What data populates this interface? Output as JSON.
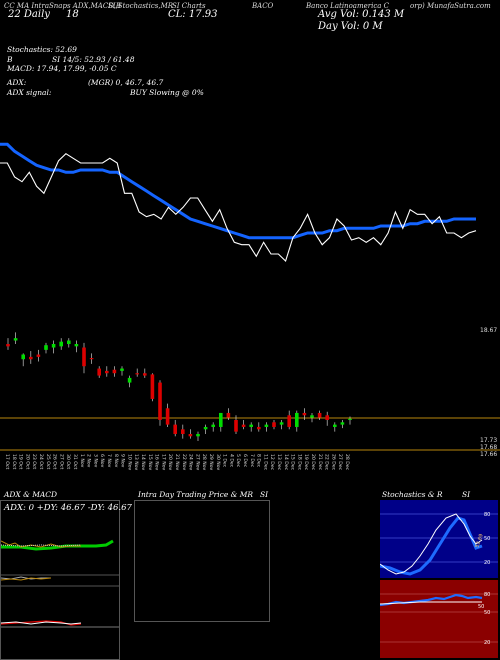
{
  "header": {
    "line1_a": "CC MA IntraSnaps ADX,MACD,B",
    "line1_b": "SI,Stochastics,MR",
    "line1_c": "SI Charts",
    "line1_d": "BACO",
    "line1_e": "Banco Latinoamerica C",
    "line1_f": "orp) MunafaSutra.com",
    "date": "22 Daily",
    "date_suffix": "18",
    "close": "CL: 17.93",
    "avg_vol": "Avg Vol: 0.143 M",
    "day_vol": "Day Vol: 0   M"
  },
  "info": {
    "stoch_label": "Stochastics: 52.69",
    "stoch_b": "B",
    "stoch_si": "SI 14/5: 52.93 / 61.48",
    "macd": "MACD: 17.94,  17.99, -0.05  C",
    "adx": "ADX:",
    "adx_mgr": "(MGR) 0, 46.7, 46.7",
    "adx_signal": "ADX  signal:",
    "adx_signal_val": "BUY Slowing @ 0%"
  },
  "price_panel": {
    "top_label": "18.67",
    "bottom_labels": [
      "17.73",
      "17.68",
      "17.66"
    ]
  },
  "dates": [
    "17 Oct",
    "18 Oct",
    "19 Oct",
    "20 Oct",
    "23 Oct",
    "24 Oct",
    "25 Oct",
    "26 Oct",
    "27 Oct",
    "30 Oct",
    "31 Oct",
    "1 Nov",
    "2 Nov",
    "3 Nov",
    "6 Nov",
    "7 Nov",
    "8 Nov",
    "9 Nov",
    "10 Nov",
    "13 Nov",
    "14 Nov",
    "15 Nov",
    "16 Nov",
    "17 Nov",
    "20 Nov",
    "21 Nov",
    "22 Nov",
    "24 Nov",
    "27 Nov",
    "28 Nov",
    "29 Nov",
    "30 Nov",
    "1 Dec",
    "4 Dec",
    "5 Dec",
    "6 Dec",
    "7 Dec",
    "8 Dec",
    "11 Dec",
    "12 Dec",
    "13 Dec",
    "14 Dec",
    "15 Dec",
    "18 Dec",
    "19 Dec",
    "20 Dec",
    "21 Dec",
    "22 Dec",
    "26 Dec",
    "27 Dec",
    "28 Dec"
  ],
  "bottom_panels": {
    "adx_title": "ADX  & MACD",
    "adx_values": "ADX: 0  +DY: 46.67  -DY: 46.67",
    "intraday_title": "Intra  Day Trading Price  & MR",
    "intraday_si": "SI",
    "stoch_title": "Stochastics & R",
    "stoch_si": "SI",
    "stoch_axis": [
      "80",
      "50",
      "20"
    ],
    "stoch_mark": "52.69",
    "rsi_axis": [
      "80",
      "50",
      "20"
    ],
    "rsi_mark": "50"
  },
  "colors": {
    "ma_line": "#1464ff",
    "bull": "#00dd00",
    "bear": "#dd0000",
    "orange_line": "#b8860b",
    "rsi_bg": "#8b0000",
    "stoch_bg": "#000088"
  },
  "chart_data": {
    "type": "candlestick",
    "price_range": [
      17.66,
      18.67
    ],
    "close_line": [
      17.9,
      17.9,
      17.84,
      17.82,
      17.86,
      17.8,
      17.77,
      17.84,
      17.91,
      17.94,
      17.92,
      17.9,
      17.9,
      17.9,
      17.9,
      17.92,
      17.9,
      17.77,
      17.77,
      17.69,
      17.67,
      17.68,
      17.66,
      17.71,
      17.68,
      17.71,
      17.75,
      17.75,
      17.7,
      17.65,
      17.7,
      17.62,
      17.56,
      17.55,
      17.55,
      17.5,
      17.56,
      17.51,
      17.51,
      17.48,
      17.58,
      17.62,
      17.68,
      17.6,
      17.55,
      17.58,
      17.66,
      17.63,
      17.57,
      17.58,
      17.56,
      17.58,
      17.55,
      17.6,
      17.69,
      17.62,
      17.7,
      17.68,
      17.68,
      17.64,
      17.67,
      17.6,
      17.6,
      17.58,
      17.6,
      17.61
    ],
    "ma_line": [
      17.98,
      17.98,
      17.95,
      17.93,
      17.91,
      17.89,
      17.88,
      17.87,
      17.87,
      17.86,
      17.86,
      17.87,
      17.87,
      17.87,
      17.87,
      17.86,
      17.86,
      17.84,
      17.82,
      17.8,
      17.78,
      17.76,
      17.74,
      17.72,
      17.7,
      17.68,
      17.66,
      17.65,
      17.64,
      17.63,
      17.62,
      17.61,
      17.6,
      17.59,
      17.58,
      17.58,
      17.58,
      17.58,
      17.58,
      17.58,
      17.58,
      17.59,
      17.6,
      17.6,
      17.6,
      17.61,
      17.61,
      17.62,
      17.62,
      17.62,
      17.62,
      17.62,
      17.63,
      17.63,
      17.63,
      17.63,
      17.64,
      17.64,
      17.65,
      17.65,
      17.65,
      17.65,
      17.66,
      17.66,
      17.66,
      17.66
    ],
    "candles": [
      {
        "o": 18.55,
        "h": 18.6,
        "l": 18.5,
        "c": 18.53
      },
      {
        "o": 18.58,
        "h": 18.65,
        "l": 18.55,
        "c": 18.6
      },
      {
        "o": 18.42,
        "h": 18.47,
        "l": 18.36,
        "c": 18.46
      },
      {
        "o": 18.44,
        "h": 18.49,
        "l": 18.38,
        "c": 18.42
      },
      {
        "o": 18.46,
        "h": 18.5,
        "l": 18.4,
        "c": 18.44
      },
      {
        "o": 18.5,
        "h": 18.56,
        "l": 18.47,
        "c": 18.54
      },
      {
        "o": 18.52,
        "h": 18.58,
        "l": 18.47,
        "c": 18.55
      },
      {
        "o": 18.53,
        "h": 18.6,
        "l": 18.5,
        "c": 18.57
      },
      {
        "o": 18.55,
        "h": 18.6,
        "l": 18.52,
        "c": 18.58
      },
      {
        "o": 18.53,
        "h": 18.58,
        "l": 18.48,
        "c": 18.55
      },
      {
        "o": 18.52,
        "h": 18.56,
        "l": 18.3,
        "c": 18.36
      },
      {
        "o": 18.43,
        "h": 18.47,
        "l": 18.38,
        "c": 18.42
      },
      {
        "o": 18.34,
        "h": 18.36,
        "l": 18.26,
        "c": 18.28
      },
      {
        "o": 18.32,
        "h": 18.36,
        "l": 18.27,
        "c": 18.3
      },
      {
        "o": 18.33,
        "h": 18.36,
        "l": 18.27,
        "c": 18.3
      },
      {
        "o": 18.32,
        "h": 18.36,
        "l": 18.28,
        "c": 18.34
      },
      {
        "o": 18.22,
        "h": 18.28,
        "l": 18.18,
        "c": 18.26
      },
      {
        "o": 18.3,
        "h": 18.34,
        "l": 18.27,
        "c": 18.29
      },
      {
        "o": 18.3,
        "h": 18.34,
        "l": 18.26,
        "c": 18.28
      },
      {
        "o": 18.29,
        "h": 18.3,
        "l": 18.06,
        "c": 18.08
      },
      {
        "o": 18.22,
        "h": 18.24,
        "l": 17.85,
        "c": 17.9
      },
      {
        "o": 18.0,
        "h": 18.04,
        "l": 17.84,
        "c": 17.86
      },
      {
        "o": 17.86,
        "h": 17.9,
        "l": 17.76,
        "c": 17.78
      },
      {
        "o": 17.82,
        "h": 17.86,
        "l": 17.74,
        "c": 17.78
      },
      {
        "o": 17.78,
        "h": 17.82,
        "l": 17.74,
        "c": 17.76
      },
      {
        "o": 17.76,
        "h": 17.8,
        "l": 17.72,
        "c": 17.78
      },
      {
        "o": 17.82,
        "h": 17.86,
        "l": 17.78,
        "c": 17.84
      },
      {
        "o": 17.84,
        "h": 17.88,
        "l": 17.8,
        "c": 17.86
      },
      {
        "o": 17.84,
        "h": 17.96,
        "l": 17.8,
        "c": 17.96
      },
      {
        "o": 17.96,
        "h": 18.0,
        "l": 17.9,
        "c": 17.92
      },
      {
        "o": 17.9,
        "h": 17.94,
        "l": 17.78,
        "c": 17.8
      },
      {
        "o": 17.86,
        "h": 17.9,
        "l": 17.82,
        "c": 17.84
      },
      {
        "o": 17.84,
        "h": 17.88,
        "l": 17.8,
        "c": 17.86
      },
      {
        "o": 17.84,
        "h": 17.88,
        "l": 17.8,
        "c": 17.82
      },
      {
        "o": 17.84,
        "h": 17.88,
        "l": 17.8,
        "c": 17.86
      },
      {
        "o": 17.88,
        "h": 17.9,
        "l": 17.82,
        "c": 17.84
      },
      {
        "o": 17.86,
        "h": 17.9,
        "l": 17.82,
        "c": 17.88
      },
      {
        "o": 17.94,
        "h": 17.98,
        "l": 17.82,
        "c": 17.84
      },
      {
        "o": 17.84,
        "h": 17.98,
        "l": 17.8,
        "c": 17.96
      },
      {
        "o": 17.96,
        "h": 18.0,
        "l": 17.9,
        "c": 17.94
      },
      {
        "o": 17.92,
        "h": 17.96,
        "l": 17.88,
        "c": 17.94
      },
      {
        "o": 17.96,
        "h": 17.98,
        "l": 17.9,
        "c": 17.92
      },
      {
        "o": 17.94,
        "h": 17.97,
        "l": 17.85,
        "c": 17.9
      },
      {
        "o": 17.84,
        "h": 17.88,
        "l": 17.8,
        "c": 17.86
      },
      {
        "o": 17.86,
        "h": 17.9,
        "l": 17.83,
        "c": 17.88
      },
      {
        "o": 17.9,
        "h": 17.93,
        "l": 17.86,
        "c": 17.91
      }
    ]
  }
}
